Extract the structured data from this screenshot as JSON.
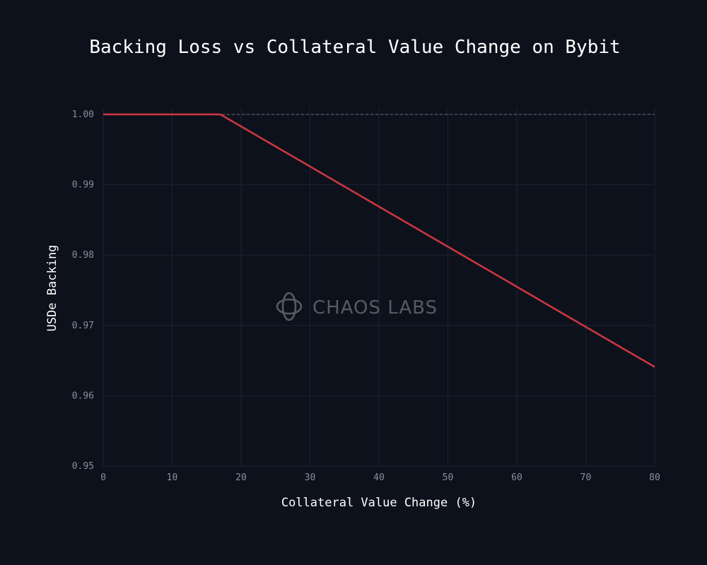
{
  "title": "Backing Loss vs Collateral Value Change on Bybit",
  "watermark": "CHAOS LABS",
  "chart_data": {
    "type": "line",
    "title": "Backing Loss vs Collateral Value Change on Bybit",
    "xlabel": "Collateral Value Change (%)",
    "ylabel": "USDe Backing",
    "xlim": [
      0,
      80
    ],
    "ylim": [
      0.95,
      1.001
    ],
    "x_ticks": [
      0,
      10,
      20,
      30,
      40,
      50,
      60,
      70,
      80
    ],
    "y_ticks": [
      0.95,
      0.96,
      0.97,
      0.98,
      0.99,
      1.0
    ],
    "x_tick_labels": [
      "0",
      "10",
      "20",
      "30",
      "40",
      "50",
      "60",
      "70",
      "80"
    ],
    "y_tick_labels": [
      "0.95",
      "0.96",
      "0.97",
      "0.98",
      "0.99",
      "1.00"
    ],
    "grid": true,
    "reference_line": {
      "y": 1.0,
      "style": "dashed",
      "color": "#6b7080"
    },
    "series": [
      {
        "color": "#c9373f",
        "x": [
          0,
          17,
          80
        ],
        "y": [
          1.0,
          1.0,
          0.9641
        ]
      }
    ]
  }
}
